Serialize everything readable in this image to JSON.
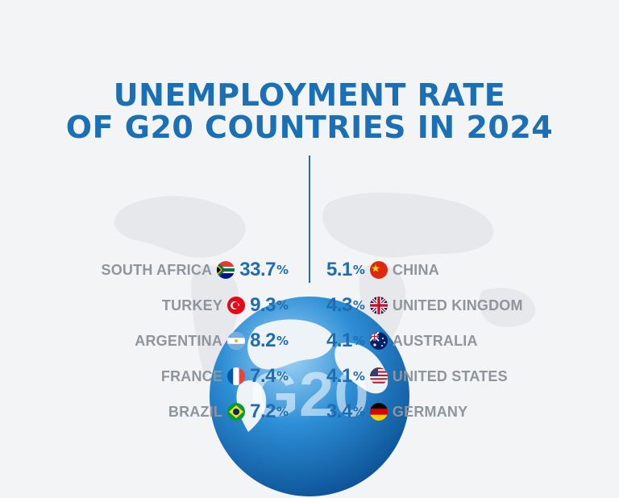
{
  "chart_data": {
    "type": "table",
    "title_line1": "UNEMPLOYMENT RATE",
    "title_line2": "OF G20 COUNTRIES IN 2024",
    "unit": "%",
    "left": [
      {
        "country": "SOUTH AFRICA",
        "value": "33.7",
        "flag": "south-africa-flag-icon"
      },
      {
        "country": "TURKEY",
        "value": "9.3",
        "flag": "turkey-flag-icon"
      },
      {
        "country": "ARGENTINA",
        "value": "8.2",
        "flag": "argentina-flag-icon"
      },
      {
        "country": "FRANCE",
        "value": "7.4",
        "flag": "france-flag-icon"
      },
      {
        "country": "BRAZIL",
        "value": "7.2",
        "flag": "brazil-flag-icon"
      }
    ],
    "right": [
      {
        "country": "CHINA",
        "value": "5.1",
        "flag": "china-flag-icon"
      },
      {
        "country": "UNITED KINGDOM",
        "value": "4.3",
        "flag": "uk-flag-icon"
      },
      {
        "country": "AUSTRALIA",
        "value": "4.1",
        "flag": "australia-flag-icon"
      },
      {
        "country": "UNITED STATES",
        "value": "4.1",
        "flag": "us-flag-icon"
      },
      {
        "country": "GERMANY",
        "value": "3.4",
        "flag": "germany-flag-icon"
      }
    ]
  },
  "globe_label": "G20",
  "colors": {
    "title": "#1a6fb5",
    "value": "#1f6db0",
    "country": "#8f959d",
    "background": "#f3f4f6"
  }
}
